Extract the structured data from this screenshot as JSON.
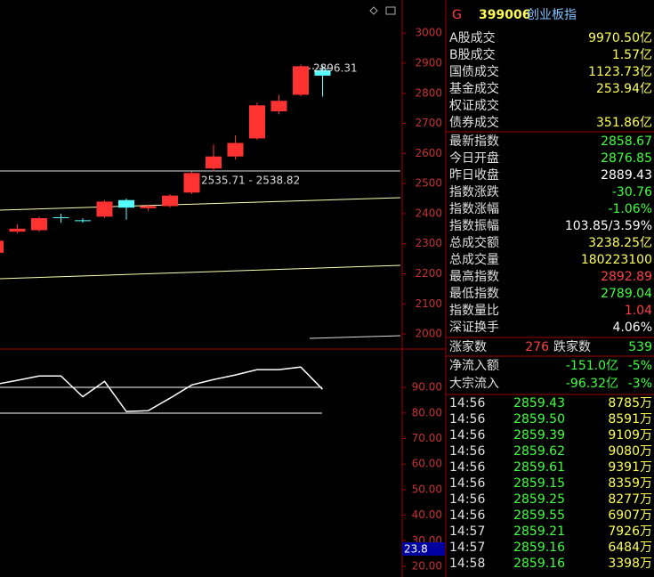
{
  "chart": {
    "ylim": [
      1950,
      3110
    ],
    "yticks": [
      3000,
      2900,
      2800,
      2700,
      2600,
      2500,
      2400,
      2300,
      2200,
      2100,
      2000
    ],
    "candles": [
      {
        "open": 2270,
        "close": 2310,
        "high": 2315,
        "low": 2265
      },
      {
        "open": 2340,
        "close": 2350,
        "high": 2365,
        "low": 2335
      },
      {
        "open": 2345,
        "close": 2385,
        "high": 2390,
        "low": 2340
      },
      {
        "open": 2388,
        "close": 2385,
        "high": 2400,
        "low": 2370
      },
      {
        "open": 2378,
        "close": 2375,
        "high": 2385,
        "low": 2370
      },
      {
        "open": 2390,
        "close": 2440,
        "high": 2445,
        "low": 2385
      },
      {
        "open": 2445,
        "close": 2420,
        "high": 2450,
        "low": 2380
      },
      {
        "open": 2418,
        "close": 2425,
        "high": 2430,
        "low": 2410
      },
      {
        "open": 2425,
        "close": 2460,
        "high": 2465,
        "low": 2420
      },
      {
        "open": 2470,
        "close": 2535,
        "high": 2540,
        "low": 2465
      },
      {
        "open": 2550,
        "close": 2590,
        "high": 2630,
        "low": 2540
      },
      {
        "open": 2590,
        "close": 2635,
        "high": 2660,
        "low": 2580
      },
      {
        "open": 2650,
        "close": 2760,
        "high": 2770,
        "low": 2645
      },
      {
        "open": 2740,
        "close": 2775,
        "high": 2795,
        "low": 2730
      },
      {
        "open": 2795,
        "close": 2890,
        "high": 2896,
        "low": 2790
      },
      {
        "open": 2876.85,
        "close": 2858.67,
        "high": 2892.89,
        "low": 2789.04
      }
    ],
    "range_annotation": "2535.71 - 2538.82",
    "high_annotation": "2896.31"
  },
  "indicator": {
    "ylim": [
      15.8,
      104.7
    ],
    "yticks": [
      {
        "value": 90,
        "label": "90.00"
      },
      {
        "value": 80,
        "label": "80.00"
      },
      {
        "value": 70,
        "label": "70.00"
      },
      {
        "value": 60,
        "label": "60.00"
      },
      {
        "value": 50,
        "label": "50.00"
      },
      {
        "value": 40,
        "label": "40.00"
      },
      {
        "value": 30,
        "label": "30.00"
      },
      {
        "value": 20,
        "label": "20.00"
      }
    ],
    "values": [
      91.2,
      92.8,
      94.5,
      94.5,
      86.4,
      92.4,
      80.6,
      80.9,
      85.8,
      91.0,
      93.1,
      94.9,
      97.0,
      97.0,
      98.0,
      89.3
    ],
    "cursor_label": "23.8"
  },
  "quote": {
    "flag": "G",
    "code": "399006",
    "name": "创业板指",
    "turnover": [
      {
        "label": "A股成交",
        "value": "9970.50亿"
      },
      {
        "label": "B股成交",
        "value": "1.57亿"
      },
      {
        "label": "国债成交",
        "value": "1123.73亿"
      },
      {
        "label": "基金成交",
        "value": "253.94亿"
      },
      {
        "label": "权证成交",
        "value": ""
      },
      {
        "label": "债券成交",
        "value": "351.86亿"
      }
    ],
    "stats": [
      {
        "label": "最新指数",
        "value": "2858.67",
        "color": "#40ff40"
      },
      {
        "label": "今日开盘",
        "value": "2876.85",
        "color": "#40ff40"
      },
      {
        "label": "昨日收盘",
        "value": "2889.43",
        "color": "#ffffff"
      },
      {
        "label": "指数涨跌",
        "value": "-30.76",
        "color": "#40ff40"
      },
      {
        "label": "指数涨幅",
        "value": "-1.06%",
        "color": "#40ff40"
      },
      {
        "label": "指数振幅",
        "value": "103.85/3.59%",
        "color": "#ffffff"
      },
      {
        "label": "总成交额",
        "value": "3238.25亿",
        "color": "#ffff54"
      },
      {
        "label": "总成交量",
        "value": "180223100",
        "color": "#ffff54"
      },
      {
        "label": "最高指数",
        "value": "2892.89",
        "color": "#ff4040"
      },
      {
        "label": "最低指数",
        "value": "2789.04",
        "color": "#40ff40"
      },
      {
        "label": "指数量比",
        "value": "1.04",
        "color": "#ff4040"
      },
      {
        "label": "深证换手",
        "value": "4.06%",
        "color": "#ffffff"
      }
    ],
    "breadth": {
      "up_label": "涨家数",
      "up": "276",
      "down_label": "跌家数",
      "down": "539"
    },
    "flows": [
      {
        "label": "净流入额",
        "value": "-151.0亿",
        "pct": "-5%"
      },
      {
        "label": "大宗流入",
        "value": "-96.32亿",
        "pct": "-3%"
      }
    ],
    "trades": [
      {
        "time": "14:56",
        "price": "2859.43",
        "volume": "8785万"
      },
      {
        "time": "14:56",
        "price": "2859.50",
        "volume": "8591万"
      },
      {
        "time": "14:56",
        "price": "2859.39",
        "volume": "9109万"
      },
      {
        "time": "14:56",
        "price": "2859.62",
        "volume": "9080万"
      },
      {
        "time": "14:56",
        "price": "2859.61",
        "volume": "9391万"
      },
      {
        "time": "14:56",
        "price": "2859.15",
        "volume": "8359万"
      },
      {
        "time": "14:56",
        "price": "2859.25",
        "volume": "8277万"
      },
      {
        "time": "14:56",
        "price": "2859.55",
        "volume": "6907万"
      },
      {
        "time": "14:57",
        "price": "2859.21",
        "volume": "7926万"
      },
      {
        "time": "14:57",
        "price": "2859.16",
        "volume": "6484万"
      },
      {
        "time": "14:58",
        "price": "2859.16",
        "volume": "3398万"
      }
    ]
  }
}
